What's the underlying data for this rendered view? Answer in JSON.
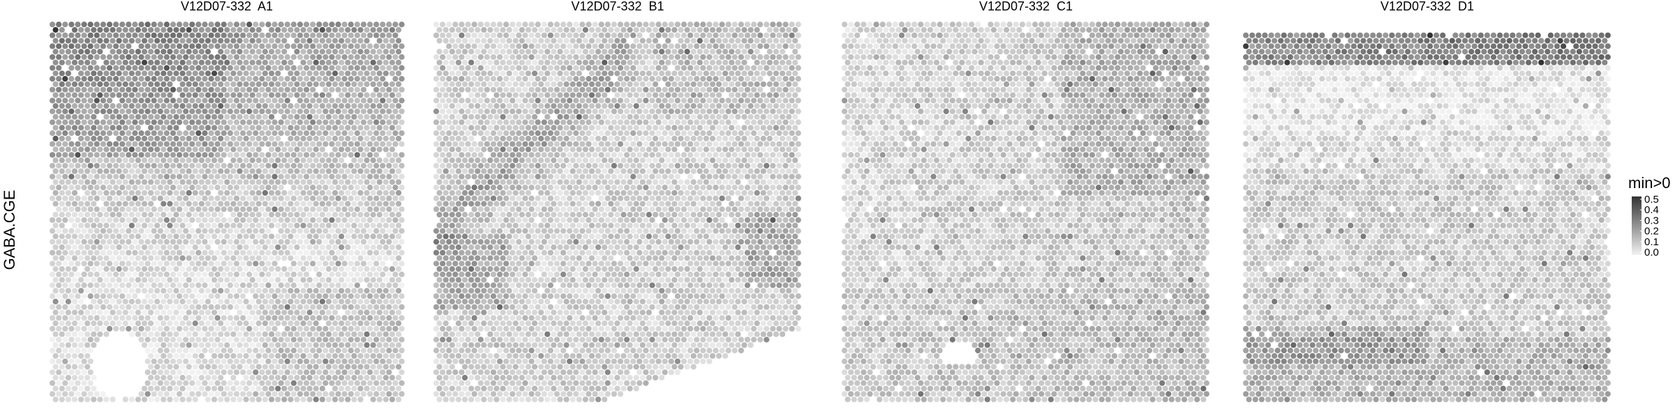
{
  "row_label": "GABA.CGE",
  "legend": {
    "title": "min>0",
    "ticks": [
      "0.5",
      "0.4",
      "0.3",
      "0.2",
      "0.1",
      "0.0"
    ],
    "low_color": "#f2f2f2",
    "high_color": "#333333"
  },
  "chart_data": {
    "type": "heatmap",
    "feature": "GABA.CGE",
    "color_scale": {
      "min": 0.0,
      "max": 0.5,
      "low": "#f2f2f2",
      "high": "#333333"
    },
    "panels": [
      {
        "title": "V12D07-332  A1",
        "pattern": "A1"
      },
      {
        "title": "V12D07-332  B1",
        "pattern": "B1"
      },
      {
        "title": "V12D07-332  C1",
        "pattern": "C1"
      },
      {
        "title": "V12D07-332  D1",
        "pattern": "D1"
      }
    ]
  }
}
